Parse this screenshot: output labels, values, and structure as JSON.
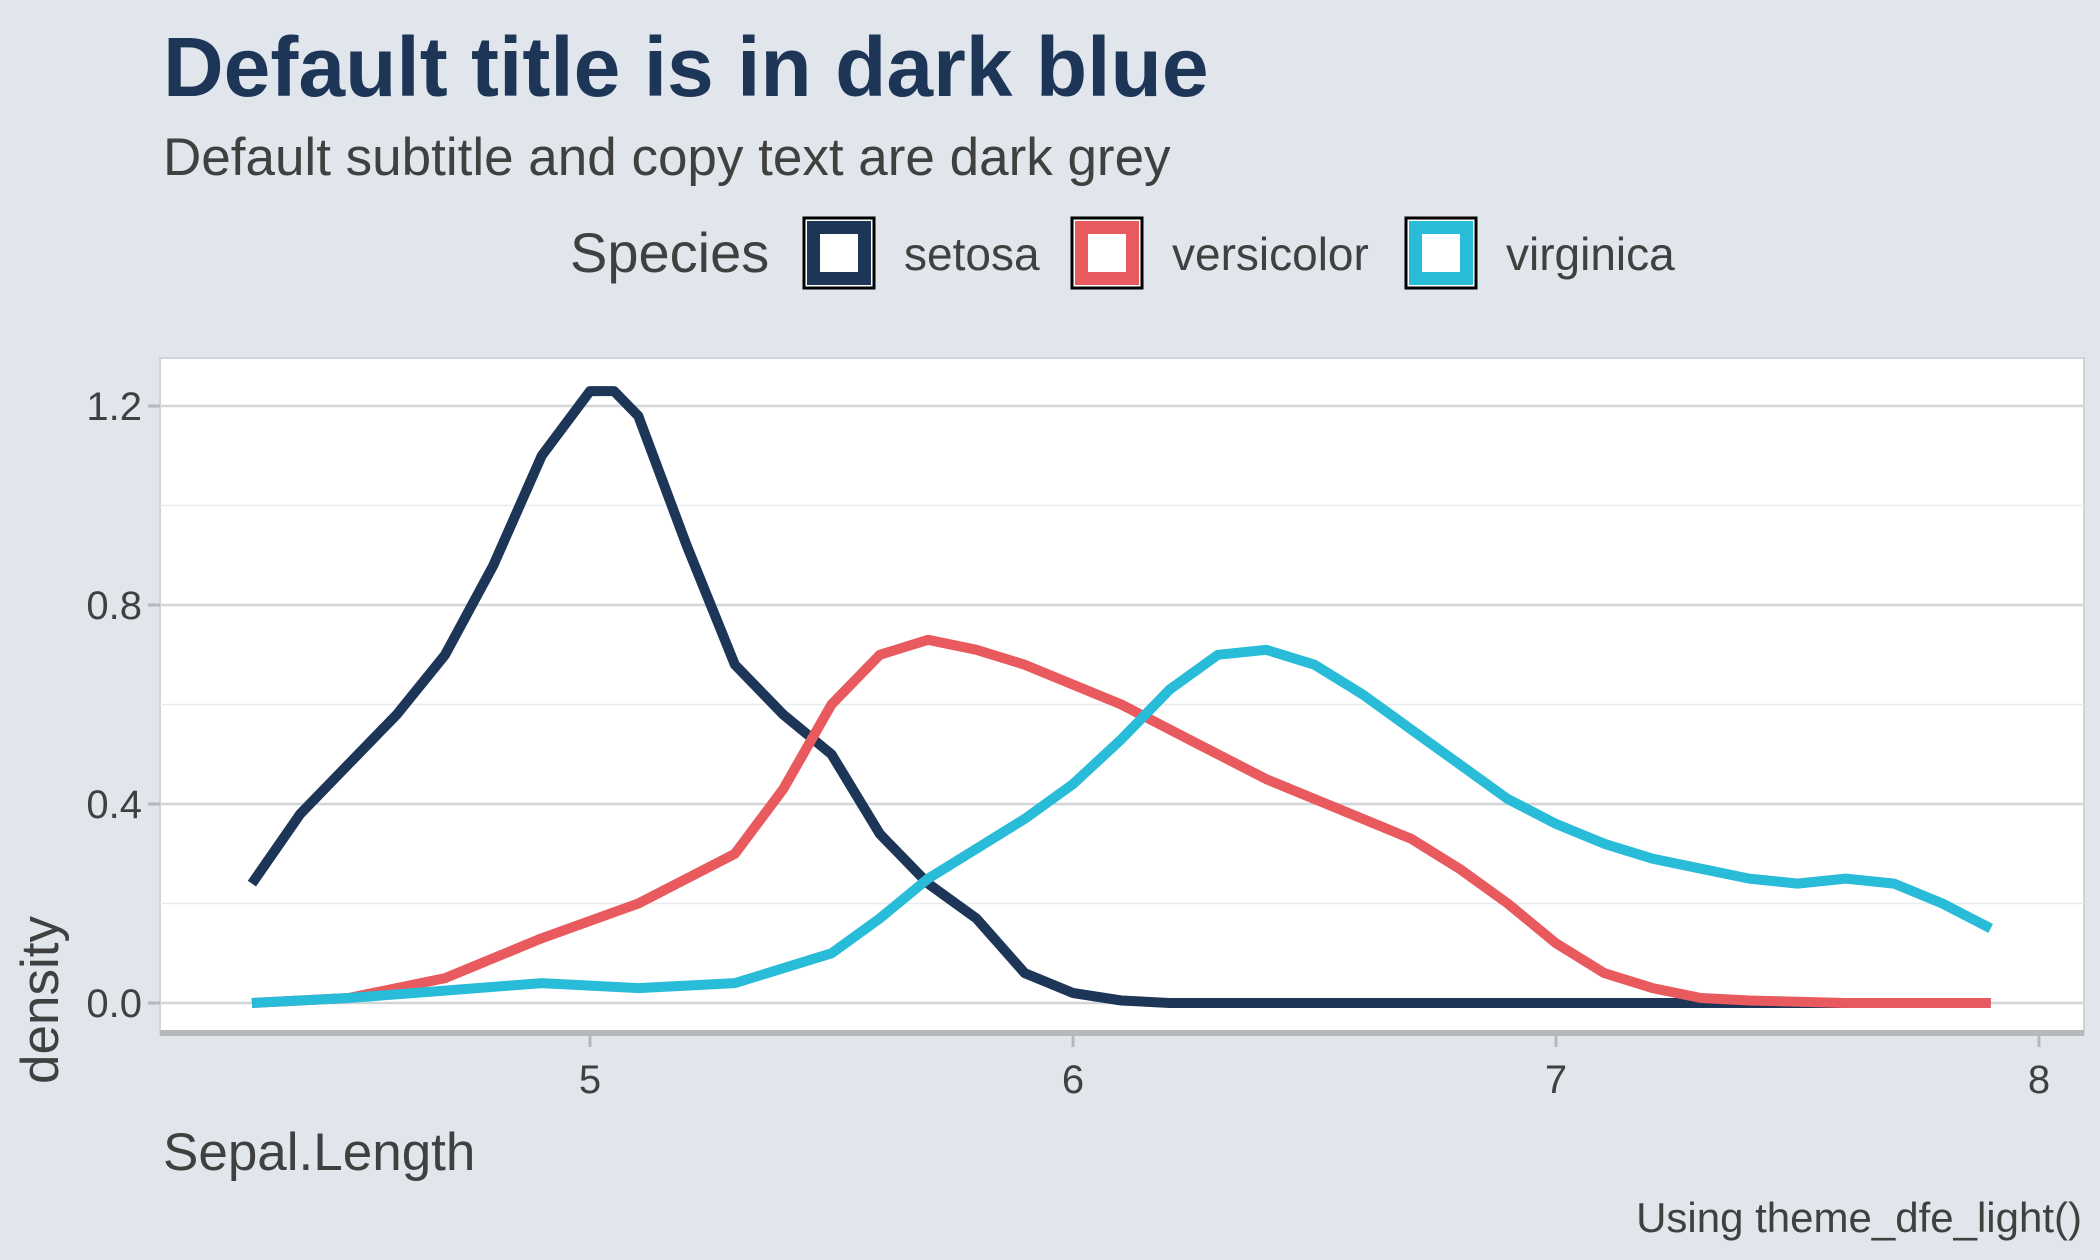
{
  "chart_data": {
    "type": "line",
    "title": "Default title is in dark blue",
    "subtitle": "Default subtitle and copy text are dark grey",
    "caption": "Using theme_dfe_light()",
    "xlabel": "Sepal.Length",
    "ylabel": "density",
    "xlim": [
      4.3,
      7.9
    ],
    "ylim": [
      0,
      1.25
    ],
    "x_ticks": [
      5,
      6,
      7,
      8
    ],
    "y_ticks": [
      0.0,
      0.4,
      0.8,
      1.2
    ],
    "x_tick_labels": [
      "5",
      "6",
      "7",
      "8"
    ],
    "y_tick_labels": [
      "0.0",
      "0.4",
      "0.8",
      "1.2"
    ],
    "grid": true,
    "legend": {
      "title": "Species",
      "placement": "top"
    },
    "colors": {
      "title": "#1d3557",
      "text": "#404040",
      "background": "#e0e6eb",
      "panel": "#ffffff"
    },
    "series": [
      {
        "name": "setosa",
        "color": "#1d3557",
        "x": [
          4.3,
          4.4,
          4.5,
          4.6,
          4.7,
          4.8,
          4.9,
          5.0,
          5.05,
          5.1,
          5.2,
          5.3,
          5.4,
          5.5,
          5.6,
          5.7,
          5.8,
          5.9,
          6.0,
          6.1,
          6.2,
          6.4,
          6.6,
          6.8,
          7.0,
          7.2,
          7.4,
          7.6,
          7.9
        ],
        "y": [
          0.24,
          0.38,
          0.48,
          0.58,
          0.7,
          0.88,
          1.1,
          1.23,
          1.23,
          1.18,
          0.92,
          0.68,
          0.58,
          0.5,
          0.34,
          0.24,
          0.17,
          0.06,
          0.02,
          0.005,
          0.0,
          0.0,
          0.0,
          0.0,
          0.0,
          0.0,
          0.0,
          0.0,
          0.0
        ]
      },
      {
        "name": "versicolor",
        "color": "#e85a5d",
        "x": [
          4.3,
          4.5,
          4.7,
          4.9,
          5.1,
          5.3,
          5.4,
          5.5,
          5.6,
          5.7,
          5.8,
          5.9,
          6.0,
          6.1,
          6.2,
          6.3,
          6.4,
          6.5,
          6.6,
          6.7,
          6.8,
          6.9,
          7.0,
          7.1,
          7.2,
          7.3,
          7.4,
          7.6,
          7.9
        ],
        "y": [
          0.0,
          0.01,
          0.05,
          0.13,
          0.2,
          0.3,
          0.43,
          0.6,
          0.7,
          0.73,
          0.71,
          0.68,
          0.64,
          0.6,
          0.55,
          0.5,
          0.45,
          0.41,
          0.37,
          0.33,
          0.27,
          0.2,
          0.12,
          0.06,
          0.03,
          0.01,
          0.005,
          0.0,
          0.0
        ]
      },
      {
        "name": "virginica",
        "color": "#28bcd8",
        "x": [
          4.3,
          4.5,
          4.7,
          4.9,
          5.1,
          5.3,
          5.5,
          5.6,
          5.7,
          5.8,
          5.9,
          6.0,
          6.1,
          6.2,
          6.3,
          6.4,
          6.5,
          6.6,
          6.7,
          6.8,
          6.9,
          7.0,
          7.1,
          7.2,
          7.3,
          7.4,
          7.5,
          7.6,
          7.7,
          7.8,
          7.9
        ],
        "y": [
          0.0,
          0.01,
          0.025,
          0.04,
          0.03,
          0.04,
          0.1,
          0.17,
          0.25,
          0.31,
          0.37,
          0.44,
          0.53,
          0.63,
          0.7,
          0.71,
          0.68,
          0.62,
          0.55,
          0.48,
          0.41,
          0.36,
          0.32,
          0.29,
          0.27,
          0.25,
          0.24,
          0.25,
          0.24,
          0.2,
          0.15
        ]
      }
    ]
  }
}
